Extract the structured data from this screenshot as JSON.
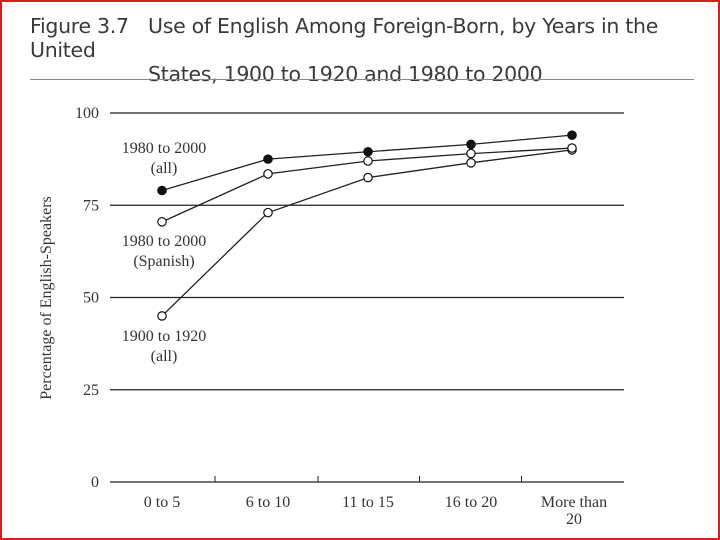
{
  "figure_label": "Figure 3.7",
  "title_line1": "Use of English Among Foreign-Born, by Years in the United",
  "title_line2": "States, 1900 to 1920 and 1980 to 2000",
  "chart_data": {
    "type": "line",
    "categories": [
      "0 to 5",
      "6 to 10",
      "11 to 15",
      "16 to 20",
      "More than 20"
    ],
    "ylabel": "Percentage of English-Speakers",
    "ylim": [
      0,
      100
    ],
    "yticks": [
      0,
      25,
      50,
      75,
      100
    ],
    "grid": true,
    "series": [
      {
        "name": "1980 to 2000 (all)",
        "label_lines": [
          "1980 to 2000",
          "(all)"
        ],
        "marker": "filled",
        "values": [
          79,
          87.5,
          89.5,
          91.5,
          94
        ]
      },
      {
        "name": "1980 to 2000 (Spanish)",
        "label_lines": [
          "1980 to 2000",
          "(Spanish)"
        ],
        "marker": "open",
        "values": [
          70.5,
          83.5,
          87,
          89,
          90.5
        ]
      },
      {
        "name": "1900 to 1920 (all)",
        "label_lines": [
          "1900 to 1920",
          "(all)"
        ],
        "marker": "open",
        "values": [
          45,
          73,
          82.5,
          86.5,
          90
        ]
      }
    ]
  }
}
